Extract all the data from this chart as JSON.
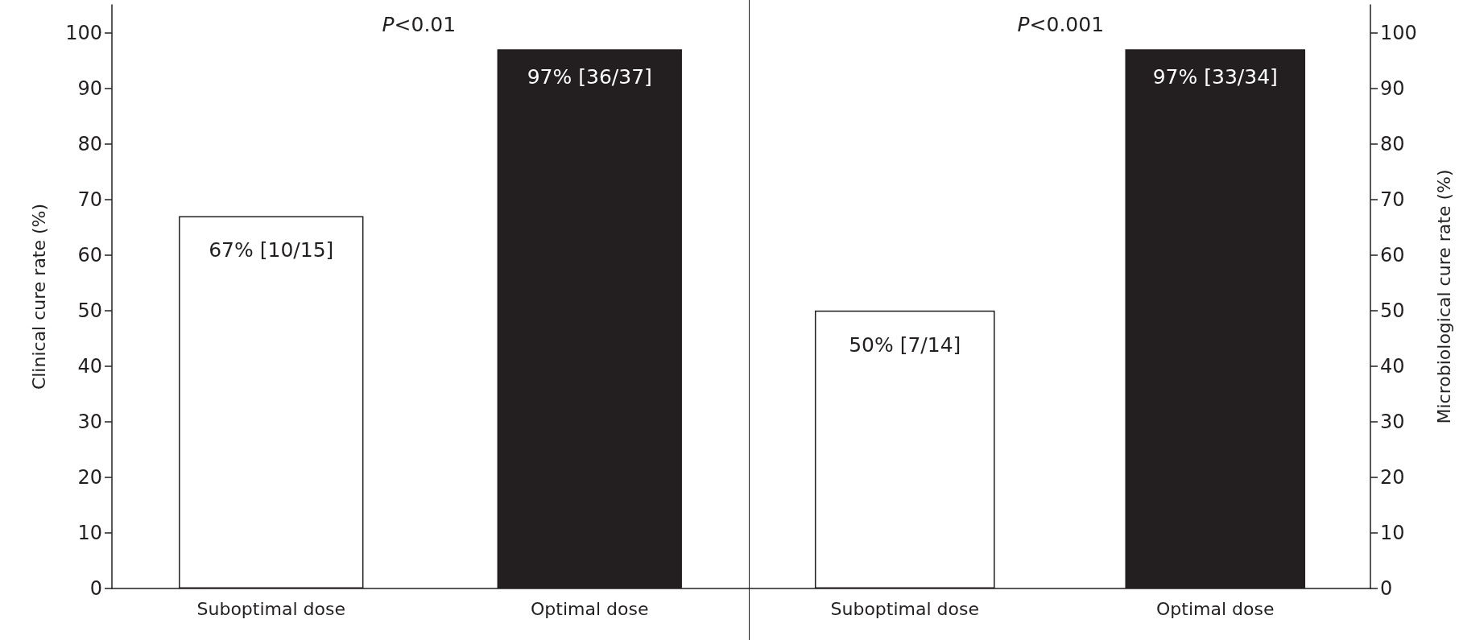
{
  "chart_data": [
    {
      "type": "bar",
      "ylabel": "Clinical cure rate (%)",
      "categories": [
        "Suboptimal dose",
        "Optimal dose"
      ],
      "annotations": [
        "P<0.01"
      ],
      "ylim": [
        0,
        105
      ],
      "yticks": [
        0,
        10,
        20,
        30,
        40,
        50,
        60,
        70,
        80,
        90,
        100
      ],
      "series": [
        {
          "values": [
            67,
            97
          ],
          "colors": [
            "#ffffff",
            "#231f20"
          ],
          "value_labels": [
            "67% [10/15]",
            "97% [36/37]"
          ]
        }
      ]
    },
    {
      "type": "bar",
      "y2label": "Microbiological cure rate (%)",
      "categories": [
        "Suboptimal dose",
        "Optimal dose"
      ],
      "annotations": [
        "P<0.001"
      ],
      "y2lim": [
        0,
        105
      ],
      "y2ticks": [
        0,
        10,
        20,
        30,
        40,
        50,
        60,
        70,
        80,
        90,
        100
      ],
      "series": [
        {
          "axis": "y2",
          "values": [
            50,
            97
          ],
          "colors": [
            "#ffffff",
            "#231f20"
          ],
          "value_labels": [
            "50% [7/14]",
            "97% [33/34]"
          ]
        }
      ]
    }
  ]
}
